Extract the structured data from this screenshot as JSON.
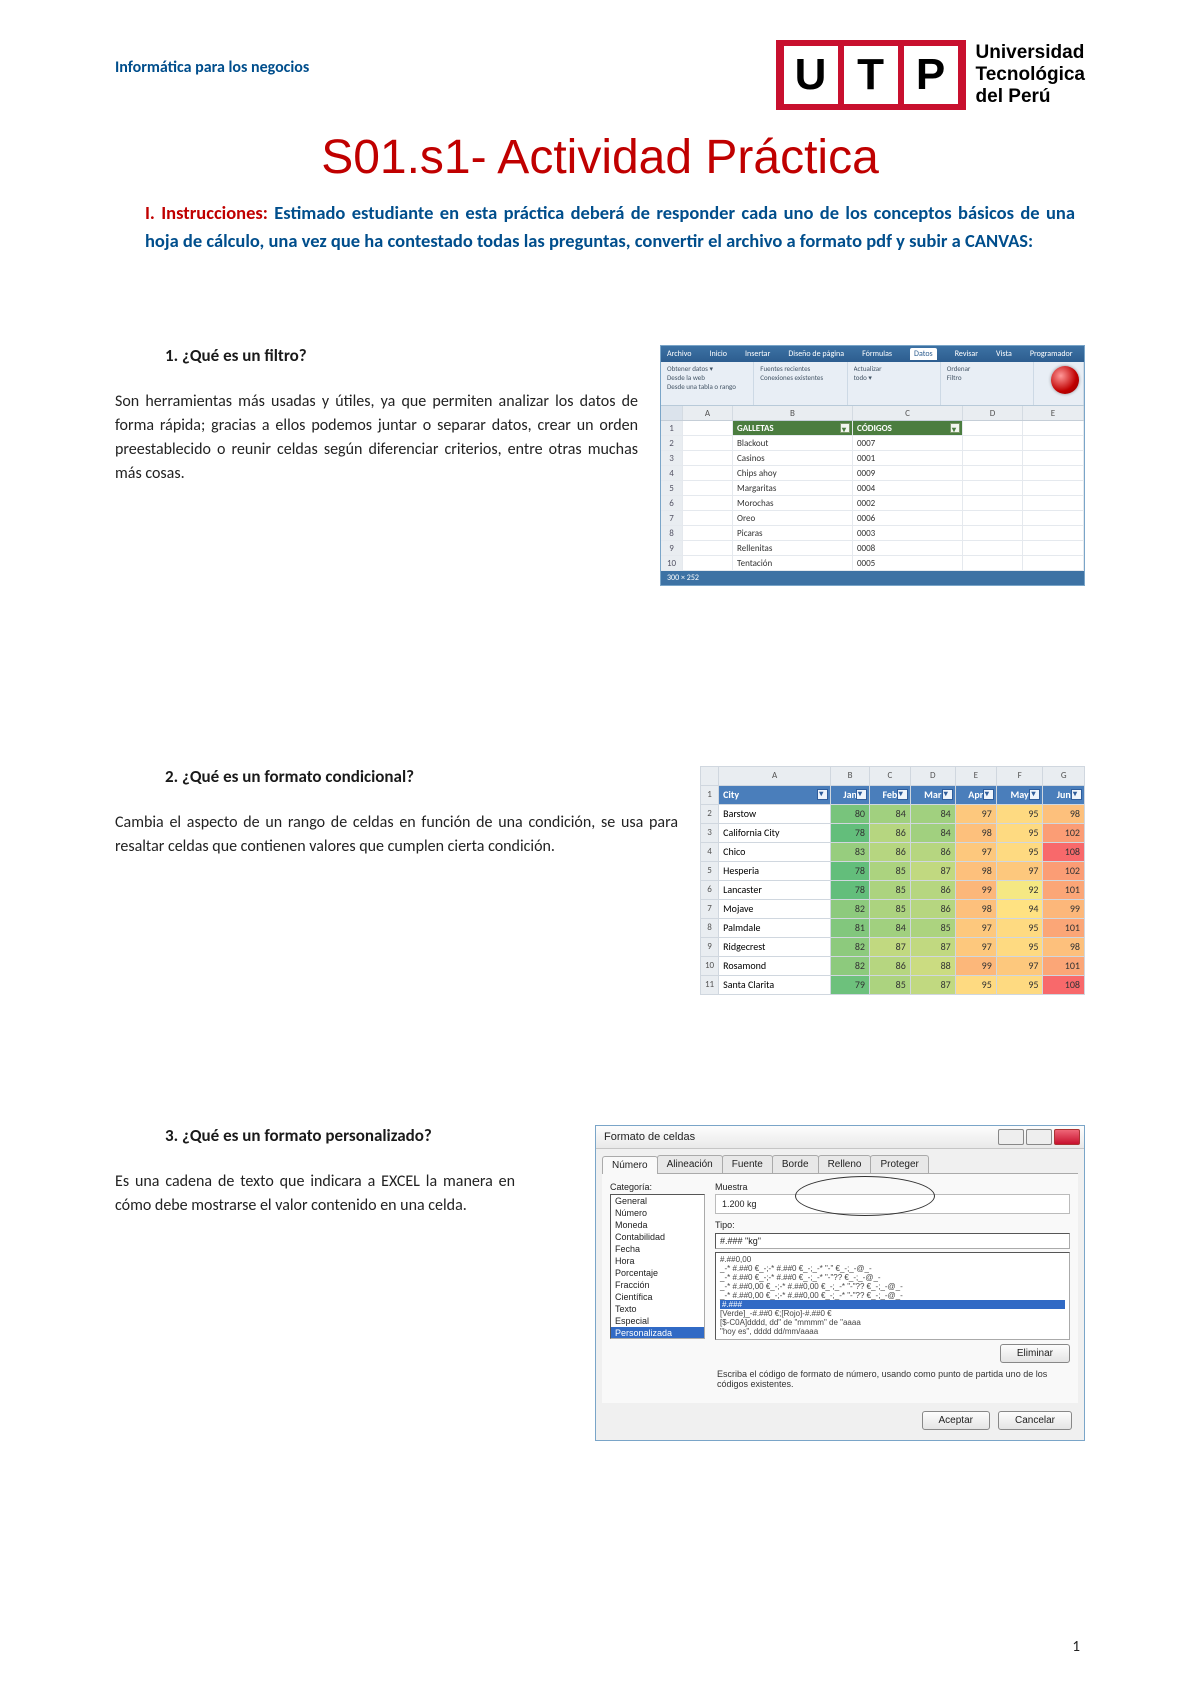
{
  "header": {
    "course": "Informática para los negocios",
    "logo_letters": [
      "U",
      "T",
      "P"
    ],
    "uni_line1": "Universidad",
    "uni_line2": "Tecnológica",
    "uni_line3": "del Perú",
    "brand_color": "#c8102e"
  },
  "title": "S01.s1- Actividad Práctica",
  "instructions": {
    "roman": "I. Instrucciones: ",
    "text": "Estimado estudiante en esta práctica deberá de responder cada uno de los conceptos básicos de una hoja de cálculo, una vez que ha contestado todas las preguntas, convertir el archivo a formato pdf y subir a CANVAS:"
  },
  "q1": {
    "title": "1.   ¿Qué es un filtro?",
    "answer": "Son herramientas más usadas y útiles, ya que permiten analizar los datos de forma rápida; gracias a ellos podemos juntar o separar datos, crear un orden preestablecido o reunir celdas según diferenciar criterios, entre otras muchas más cosas."
  },
  "fig1": {
    "ribbon_tabs": [
      "Archivo",
      "Inicio",
      "Insertar",
      "Diseño de página",
      "Fórmulas",
      "Datos",
      "Revisar",
      "Vista",
      "Programador"
    ],
    "col_letters": [
      "",
      "A",
      "B",
      "C",
      "D",
      "E"
    ],
    "th": [
      "GALLETAS",
      "CÓDIGOS"
    ],
    "rows": [
      [
        "Blackout",
        "0007"
      ],
      [
        "Casinos",
        "0001"
      ],
      [
        "Chips ahoy",
        "0009"
      ],
      [
        "Margaritas",
        "0004"
      ],
      [
        "Morochas",
        "0002"
      ],
      [
        "Oreo",
        "0006"
      ],
      [
        "Picaras",
        "0003"
      ],
      [
        "Rellenitas",
        "0008"
      ],
      [
        "Tentación",
        "0005"
      ]
    ],
    "footer": "300 × 252",
    "th_bg": "#4b7d3f",
    "circle_color": "#c00000"
  },
  "q2": {
    "title": "2.   ¿Qué es un formato condicional?",
    "answer": "Cambia el aspecto de un rango de celdas en función de una condición, se usa para resaltar celdas que contienen valores que cumplen cierta condición."
  },
  "fig2": {
    "col_letters": [
      "",
      "A",
      "B",
      "C",
      "D",
      "E",
      "F",
      "G"
    ],
    "headers": [
      "City",
      "Jan",
      "Feb",
      "Mar",
      "Apr",
      "May",
      "Jun"
    ],
    "cities": [
      "Barstow",
      "California City",
      "Chico",
      "Hesperia",
      "Lancaster",
      "Mojave",
      "Palmdale",
      "Ridgecrest",
      "Rosamond",
      "Santa Clarita"
    ],
    "values": [
      [
        80,
        84,
        84,
        97,
        95,
        98
      ],
      [
        78,
        86,
        84,
        98,
        95,
        102
      ],
      [
        83,
        86,
        86,
        97,
        95,
        108
      ],
      [
        78,
        85,
        87,
        98,
        97,
        102
      ],
      [
        78,
        85,
        86,
        99,
        92,
        101
      ],
      [
        82,
        85,
        86,
        98,
        94,
        99
      ],
      [
        81,
        84,
        85,
        97,
        95,
        101
      ],
      [
        82,
        87,
        87,
        97,
        95,
        98
      ],
      [
        82,
        86,
        88,
        99,
        97,
        101
      ],
      [
        79,
        85,
        87,
        95,
        95,
        108
      ]
    ],
    "min": 78,
    "max": 108,
    "scale_low": "#63be7b",
    "scale_mid": "#ffeb84",
    "scale_high": "#f8696b",
    "hdr_bg": "#4a7ebb"
  },
  "q3": {
    "title": "3.   ¿Qué es un formato personalizado?",
    "answer": "Es una cadena de texto que indicara a EXCEL la manera en cómo debe mostrarse el valor contenido en una celda."
  },
  "fig3": {
    "title": "Formato de celdas",
    "tabs": [
      "Número",
      "Alineación",
      "Fuente",
      "Borde",
      "Relleno",
      "Proteger"
    ],
    "cat_label": "Categoría:",
    "categories": [
      "General",
      "Número",
      "Moneda",
      "Contabilidad",
      "Fecha",
      "Hora",
      "Porcentaje",
      "Fracción",
      "Científica",
      "Texto",
      "Especial",
      "Personalizada"
    ],
    "sample_label": "Muestra",
    "sample_value": "1.200 kg",
    "type_label": "Tipo:",
    "type_value": "#.### \"kg\"",
    "type_lines": [
      "#.##0,00",
      "_-* #.##0 €_-;-* #.##0 €_-;_-* \"-\" €_-;_-@_-",
      "_-* #.##0 €_-;-* #.##0 €_-;_-* \"-\"?? €_-;_-@_-",
      "_-* #.##0,00 €_-;-* #.##0,00 €_-;_-* \"-\"?? €_-;_-@_-",
      "_-* #.##0,00 €_-;-* #.##0,00 €_-;_-* \"-\"?? €_-;_-@_-"
    ],
    "type_sel": "#.###",
    "type_extra": [
      "[Verde]_-#.##0 €;[Rojo]-#.##0 €",
      "[$-C0A]dddd, dd\" de \"mmmm\" de \"aaaa",
      "\"hoy es\", dddd dd/mm/aaaa"
    ],
    "delete_btn": "Eliminar",
    "desc": "Escriba el código de formato de número, usando como punto de partida uno de los códigos existentes.",
    "ok": "Aceptar",
    "cancel": "Cancelar"
  },
  "page_number": "1"
}
